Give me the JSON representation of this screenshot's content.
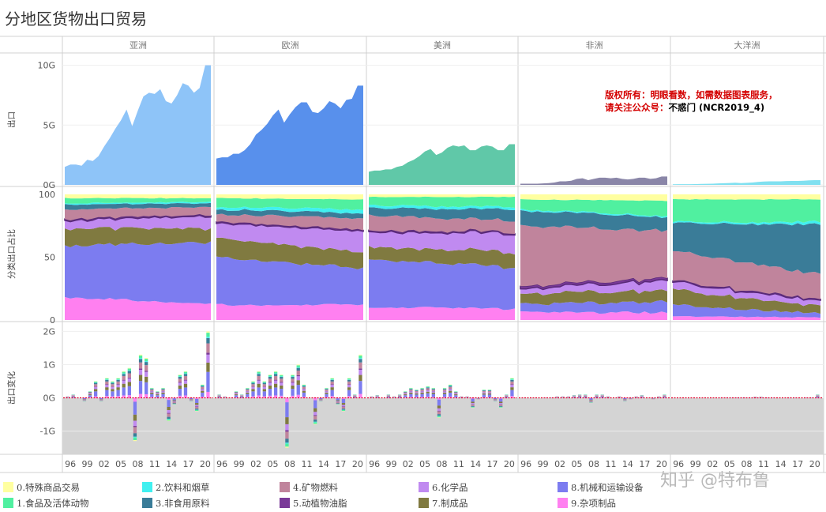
{
  "title": "分地区货物出口贸易",
  "copyright": {
    "line1": "版权所有：明眼看数，如需数据图表服务，",
    "line2_prefix": "请关注公众号：",
    "line2_account": "不惑门 (NCR2019_4)"
  },
  "watermark": "知乎 @特布鲁",
  "colors": {
    "cat0": "#ffffa0",
    "cat1": "#50f0a0",
    "cat2": "#40f0f0",
    "cat3": "#3a7c98",
    "cat4": "#c0849c",
    "cat5": "#7a3a98",
    "cat6": "#c08af0",
    "cat7": "#807a40",
    "cat8": "#7c7cf0",
    "cat9": "#ff80f0",
    "asia": "#8ec4f8",
    "europe": "#5890ec",
    "america": "#60c8a8",
    "africa": "#8a86a8",
    "oceania": "#80e0f0",
    "negative_zone": "#d4d4d4",
    "zero_line": "#e4002b"
  },
  "chart_data": {
    "type": "area",
    "regions": [
      "亚洲",
      "欧洲",
      "美洲",
      "非洲",
      "大洋洲"
    ],
    "x_ticks": [
      "96",
      "99",
      "02",
      "05",
      "08",
      "11",
      "14",
      "17",
      "20"
    ],
    "years": [
      1995,
      1996,
      1997,
      1998,
      1999,
      2000,
      2001,
      2002,
      2003,
      2004,
      2005,
      2006,
      2007,
      2008,
      2009,
      2010,
      2011,
      2012,
      2013,
      2014,
      2015,
      2016,
      2017,
      2018,
      2019,
      2020,
      2021
    ],
    "rows": [
      {
        "name": "exports",
        "ylabel": "出口",
        "yticks": [
          "10G",
          "5G",
          "0G"
        ],
        "ylim": [
          0,
          10.5
        ],
        "series": [
          {
            "name": "亚洲",
            "values": [
              1.5,
              1.7,
              1.7,
              1.6,
              2.1,
              2.0,
              2.4,
              3.2,
              3.9,
              4.7,
              5.4,
              6.3,
              4.9,
              6.2,
              7.4,
              7.7,
              7.6,
              8.0,
              7.0,
              6.8,
              7.5,
              8.5,
              8.3,
              7.7,
              8.1,
              10.0,
              10.0
            ]
          },
          {
            "name": "欧洲",
            "values": [
              2.2,
              2.3,
              2.3,
              2.6,
              2.6,
              2.9,
              3.4,
              4.2,
              4.6,
              5.1,
              5.8,
              6.3,
              5.2,
              5.9,
              6.5,
              6.9,
              6.9,
              6.1,
              6.0,
              6.4,
              7.0,
              6.8,
              6.4,
              7.1,
              7.2,
              8.3,
              8.3
            ]
          },
          {
            "name": "美洲",
            "values": [
              1.1,
              1.2,
              1.2,
              1.3,
              1.3,
              1.5,
              1.6,
              1.9,
              2.1,
              2.4,
              2.8,
              3.0,
              2.5,
              2.7,
              3.1,
              3.3,
              3.2,
              3.3,
              2.9,
              2.9,
              3.2,
              3.3,
              3.2,
              2.9,
              2.9,
              3.4,
              3.4
            ]
          },
          {
            "name": "非洲",
            "values": [
              0.1,
              0.1,
              0.1,
              0.1,
              0.12,
              0.15,
              0.2,
              0.3,
              0.3,
              0.35,
              0.5,
              0.55,
              0.4,
              0.5,
              0.6,
              0.6,
              0.55,
              0.6,
              0.5,
              0.45,
              0.5,
              0.6,
              0.6,
              0.5,
              0.55,
              0.7,
              0.7
            ]
          },
          {
            "name": "大洋洲",
            "values": [
              0.05,
              0.06,
              0.06,
              0.06,
              0.07,
              0.08,
              0.09,
              0.1,
              0.12,
              0.14,
              0.16,
              0.18,
              0.15,
              0.17,
              0.2,
              0.25,
              0.28,
              0.3,
              0.3,
              0.3,
              0.32,
              0.33,
              0.33,
              0.35,
              0.38,
              0.4,
              0.4
            ]
          }
        ]
      },
      {
        "name": "share",
        "ylabel": "分类出口占比",
        "yticks": [
          "100",
          "50",
          "0"
        ],
        "ylim": [
          0,
          100
        ],
        "categories": [
          "0.特殊商品交易",
          "1.食品及活体动物",
          "2.饮料和烟草",
          "3.非食用原料",
          "4.矿物燃料",
          "5.动植物油脂",
          "6.化学品",
          "7.制成品",
          "8.机械和运输设备",
          "9.杂项制品"
        ],
        "series": [
          {
            "name": "亚洲",
            "shares_start": [
              3,
              4,
              1,
              4,
              8,
              1,
              6,
              14,
              41,
              18
            ],
            "shares_end": [
              3,
              3,
              1,
              3,
              6,
              1,
              10,
              11,
              49,
              13
            ]
          },
          {
            "name": "欧洲",
            "shares_start": [
              3,
              7,
              2,
              4,
              6,
              1,
              12,
              15,
              38,
              12
            ],
            "shares_end": [
              4,
              8,
              3,
              4,
              9,
              1,
              17,
              13,
              29,
              12
            ]
          },
          {
            "name": "美洲",
            "shares_start": [
              2,
              7,
              2,
              6,
              12,
              1,
              12,
              10,
              38,
              10
            ],
            "shares_end": [
              2,
              8,
              2,
              9,
              9,
              1,
              15,
              12,
              33,
              9
            ]
          },
          {
            "name": "非洲",
            "shares_start": [
              4,
              8,
              1,
              12,
              49,
              2,
              4,
              8,
              6,
              6
            ],
            "shares_end": [
              5,
              12,
              1,
              11,
              37,
              2,
              8,
              9,
              9,
              6
            ]
          },
          {
            "name": "大洋洲",
            "shares_start": [
              4,
              18,
              1,
              22,
              24,
              1,
              6,
              12,
              9,
              3
            ],
            "shares_end": [
              4,
              18,
              2,
              40,
              20,
              1,
              4,
              6,
              3,
              2
            ]
          }
        ]
      },
      {
        "name": "change",
        "ylabel": "出口变化",
        "yticks": [
          "2G",
          "1G",
          "0G",
          "-1G"
        ],
        "ylim": [
          -1.7,
          2.2
        ],
        "series": [
          {
            "name": "亚洲",
            "values": [
              0.05,
              0.1,
              0,
              -0.1,
              0.2,
              0.5,
              -0.1,
              0.6,
              0.5,
              0.6,
              0.8,
              0.9,
              -1.3,
              1.3,
              1.2,
              0.3,
              0.2,
              0.3,
              -0.7,
              -0.2,
              0.7,
              0.8,
              -0.1,
              -0.4,
              0.4,
              2.0
            ]
          },
          {
            "name": "欧洲",
            "values": [
              0.1,
              0.05,
              0,
              0.2,
              0.1,
              0.3,
              0.5,
              0.8,
              0.5,
              0.7,
              0.8,
              0.7,
              -1.5,
              0.7,
              1.0,
              0.4,
              0,
              -0.8,
              -0.1,
              0.3,
              0.6,
              -0.2,
              -0.4,
              0.6,
              0.1,
              1.3
            ]
          },
          {
            "name": "美洲",
            "values": [
              0.05,
              0.08,
              0,
              0.1,
              0.05,
              0.1,
              0.2,
              0.3,
              0.25,
              0.3,
              0.35,
              0.3,
              -0.6,
              0.3,
              0.4,
              0.2,
              0.05,
              0.05,
              -0.3,
              -0.05,
              0.25,
              0.25,
              -0.1,
              -0.3,
              0.1,
              0.6
            ]
          },
          {
            "name": "非洲",
            "values": [
              0,
              0,
              0,
              0,
              0.02,
              0.03,
              0.05,
              0.05,
              0.05,
              0.08,
              0.1,
              0.1,
              -0.15,
              0.1,
              0.1,
              0.05,
              0,
              0.05,
              -0.1,
              -0.05,
              0.05,
              0.08,
              0,
              -0.05,
              0.05,
              0.1
            ]
          },
          {
            "name": "大洋洲",
            "values": [
              0,
              0,
              0,
              0,
              0,
              0.01,
              0.01,
              0.01,
              0.02,
              0.02,
              0.02,
              0.03,
              -0.03,
              0.02,
              0.04,
              0.04,
              0.03,
              0.02,
              0,
              0,
              0.02,
              0.02,
              0,
              0.03,
              0.03,
              0.1
            ]
          }
        ]
      }
    ],
    "legend": [
      {
        "label": "0.特殊商品交易",
        "color": "#ffffa0"
      },
      {
        "label": "1.食品及活体动物",
        "color": "#50f0a0"
      },
      {
        "label": "2.饮料和烟草",
        "color": "#40f0f0"
      },
      {
        "label": "3.非食用原料",
        "color": "#3a7c98"
      },
      {
        "label": "4.矿物燃料",
        "color": "#c0849c"
      },
      {
        "label": "5.动植物油脂",
        "color": "#7a3a98"
      },
      {
        "label": "6.化学品",
        "color": "#c08af0"
      },
      {
        "label": "7.制成品",
        "color": "#807a40"
      },
      {
        "label": "8.机械和运输设备",
        "color": "#7c7cf0"
      },
      {
        "label": "9.杂项制品",
        "color": "#ff80f0"
      }
    ],
    "legend_placement": "bottom",
    "grid": true
  }
}
